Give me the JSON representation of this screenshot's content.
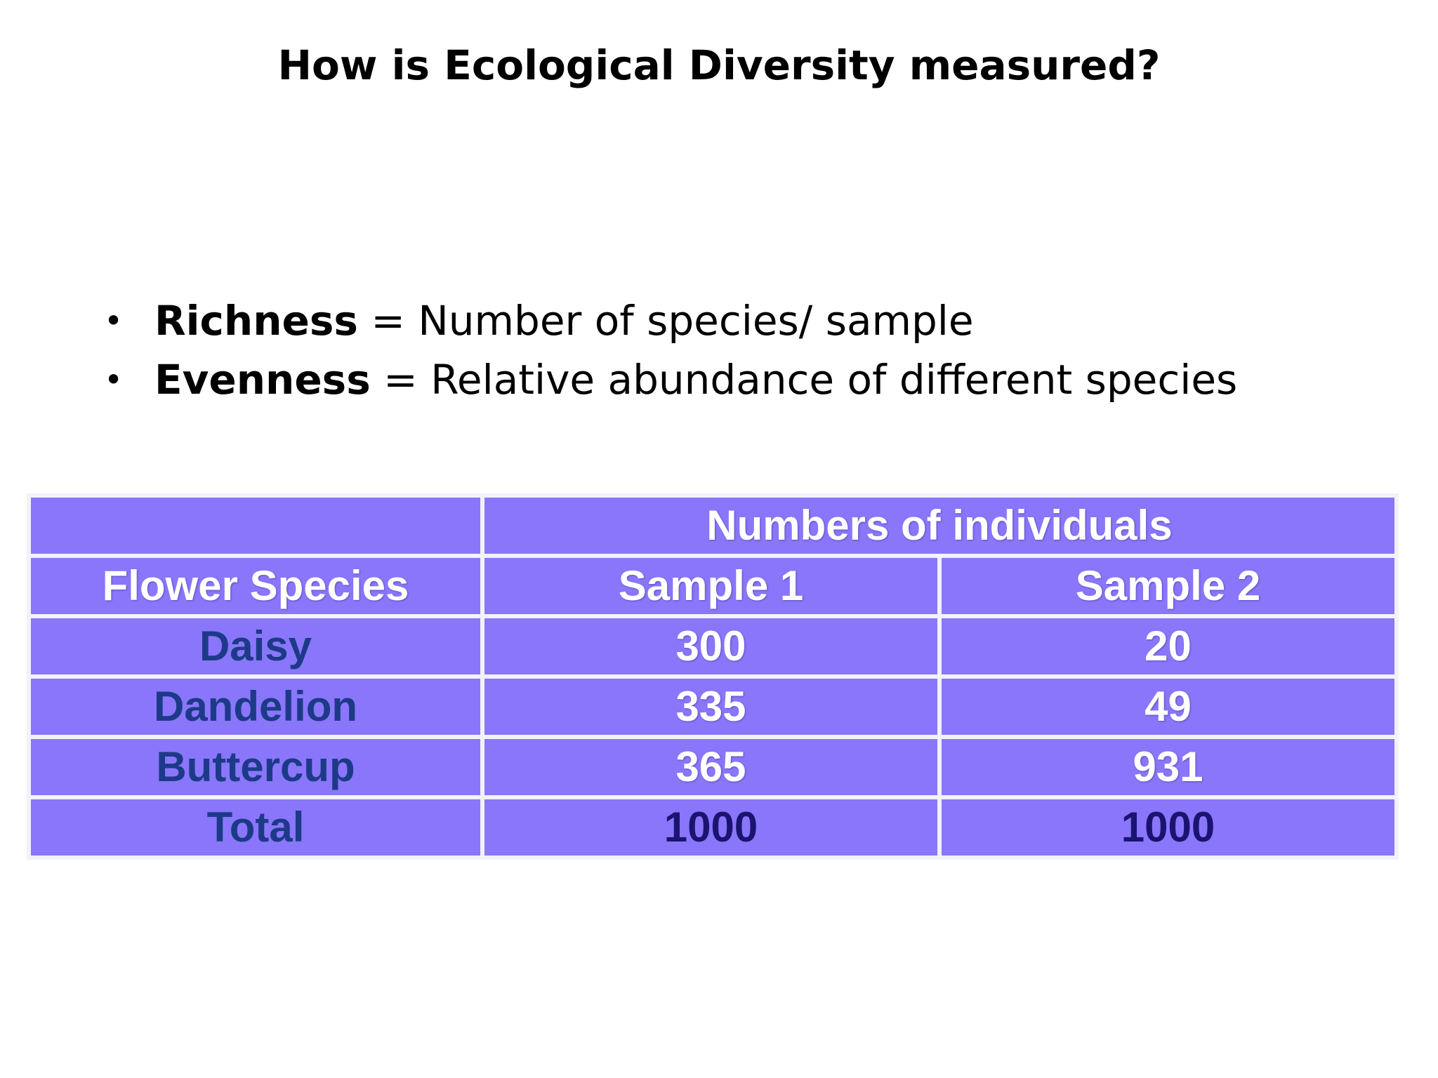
{
  "slide": {
    "title": "How is Ecological Diversity measured?"
  },
  "bullets": [
    {
      "term": "Richness",
      "definition": " = Number of species/ sample"
    },
    {
      "term": "Evenness",
      "definition": " = Relative abundance of different species"
    }
  ],
  "table": {
    "group_header": "Numbers of individuals",
    "columns": [
      "Flower Species",
      "Sample 1",
      "Sample 2"
    ],
    "rows": [
      {
        "species": "Daisy",
        "sample1": "300",
        "sample2": "20"
      },
      {
        "species": "Dandelion",
        "sample1": "335",
        "sample2": "49"
      },
      {
        "species": "Buttercup",
        "sample1": "365",
        "sample2": "931"
      },
      {
        "species": "Total",
        "sample1": "1000",
        "sample2": "1000"
      }
    ],
    "colors": {
      "cell_fill": "#8976fa",
      "grid_line": "#f2f2fb",
      "header_text": "#ffffff",
      "species_text": "#1d3a88",
      "total_text": "#1a1470"
    }
  }
}
